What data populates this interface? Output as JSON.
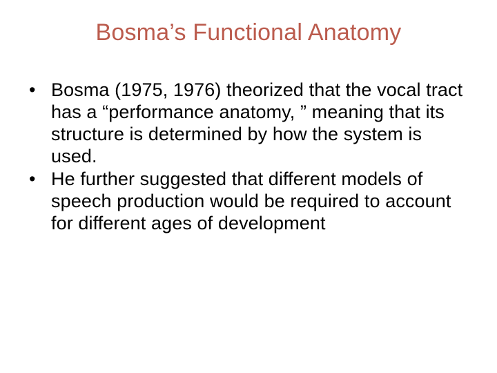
{
  "slide": {
    "title": "Bosma’s Functional Anatomy",
    "title_color": "#bb5b4d",
    "title_fontsize": 34,
    "body_color": "#000000",
    "body_fontsize": 27,
    "background_color": "#ffffff",
    "bullets": [
      "Bosma (1975, 1976) theorized that the vocal tract has a “performance anatomy, ” meaning that its structure is determined by how the system is used.",
      "He further suggested that different models of speech production would be required to account for different ages of development"
    ]
  }
}
